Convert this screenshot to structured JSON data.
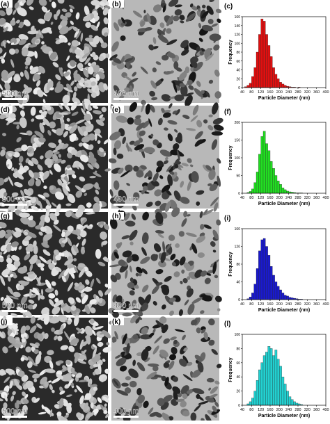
{
  "panels": [
    {
      "label": "(a)",
      "scale_bar": "500 nm"
    },
    {
      "label": "(b)",
      "scale_bar": "400 nm"
    },
    {
      "label": "(d)",
      "scale_bar": "500 nm"
    },
    {
      "label": "(e)",
      "scale_bar": "400 nm"
    },
    {
      "label": "(g)",
      "scale_bar": "500 nm"
    },
    {
      "label": "(h)",
      "scale_bar": "400 nm"
    },
    {
      "label": "(j)",
      "scale_bar": "500 nm"
    },
    {
      "label": "(k)",
      "scale_bar": "400 nm"
    }
  ],
  "chart_data": [
    {
      "type": "histogram",
      "panel_label": "(c)",
      "x_label": "Particle Diameter (nm)",
      "y_label": "Frequency",
      "color": "#e01010",
      "bins": [
        50,
        60,
        70,
        80,
        90,
        100,
        110,
        120,
        130,
        140,
        150,
        160,
        170,
        180,
        190,
        200,
        210,
        220,
        230,
        240,
        250,
        260,
        270,
        280,
        290,
        300
      ],
      "values": [
        2,
        5,
        10,
        25,
        45,
        80,
        120,
        155,
        150,
        120,
        95,
        70,
        45,
        30,
        20,
        12,
        8,
        5,
        3,
        2,
        1,
        1,
        0,
        1,
        0
      ],
      "xlim": [
        40,
        400
      ],
      "xticks": [
        40,
        80,
        120,
        160,
        200,
        240,
        280,
        320,
        360,
        400
      ],
      "ylim": [
        0,
        160
      ],
      "yticks": [
        0,
        20,
        40,
        60,
        80,
        100,
        120,
        140,
        160
      ]
    },
    {
      "type": "histogram",
      "panel_label": "(f)",
      "x_label": "Particle Diameter (nm)",
      "y_label": "Frequency",
      "color": "#22dd22",
      "bins": [
        50,
        60,
        70,
        80,
        90,
        100,
        110,
        120,
        130,
        140,
        150,
        160,
        170,
        180,
        190,
        200,
        210,
        220,
        230,
        240,
        250,
        260,
        270,
        280,
        290,
        300
      ],
      "values": [
        0,
        2,
        5,
        12,
        30,
        60,
        110,
        160,
        175,
        140,
        120,
        90,
        70,
        50,
        35,
        25,
        15,
        10,
        6,
        4,
        3,
        2,
        1,
        1,
        1
      ],
      "xlim": [
        40,
        400
      ],
      "xticks": [
        40,
        80,
        120,
        160,
        200,
        240,
        280,
        320,
        360,
        400
      ],
      "ylim": [
        0,
        200
      ],
      "yticks": [
        0,
        50,
        100,
        150,
        200
      ]
    },
    {
      "type": "histogram",
      "panel_label": "(i)",
      "x_label": "Particle Diameter (nm)",
      "y_label": "Frequency",
      "color": "#1a1acc",
      "bins": [
        50,
        60,
        70,
        80,
        90,
        100,
        110,
        120,
        130,
        140,
        150,
        160,
        170,
        180,
        190,
        200,
        210,
        220,
        230,
        240,
        250,
        260,
        270,
        280,
        290,
        300
      ],
      "values": [
        0,
        2,
        6,
        15,
        35,
        70,
        110,
        135,
        138,
        120,
        100,
        75,
        55,
        40,
        30,
        22,
        15,
        10,
        8,
        5,
        4,
        3,
        2,
        1,
        1
      ],
      "xlim": [
        40,
        400
      ],
      "xticks": [
        40,
        80,
        120,
        160,
        200,
        240,
        280,
        320,
        360,
        400
      ],
      "ylim": [
        0,
        160
      ],
      "yticks": [
        0,
        40,
        80,
        120,
        160
      ]
    },
    {
      "type": "histogram",
      "panel_label": "(l)",
      "x_label": "Particle Diameter (nm)",
      "y_label": "Frequency",
      "color": "#22d0d0",
      "bins": [
        60,
        70,
        80,
        90,
        100,
        110,
        120,
        130,
        140,
        150,
        160,
        170,
        180,
        190,
        200,
        210,
        220,
        230,
        240,
        250,
        260,
        270,
        280,
        290,
        300
      ],
      "values": [
        2,
        5,
        10,
        20,
        35,
        50,
        60,
        70,
        75,
        83,
        80,
        70,
        78,
        65,
        55,
        40,
        30,
        20,
        12,
        8,
        5,
        3,
        2,
        1
      ],
      "xlim": [
        40,
        400
      ],
      "xticks": [
        40,
        80,
        120,
        160,
        200,
        240,
        280,
        320,
        360,
        400
      ],
      "ylim": [
        0,
        100
      ],
      "yticks": [
        0,
        20,
        40,
        60,
        80,
        100
      ]
    }
  ]
}
